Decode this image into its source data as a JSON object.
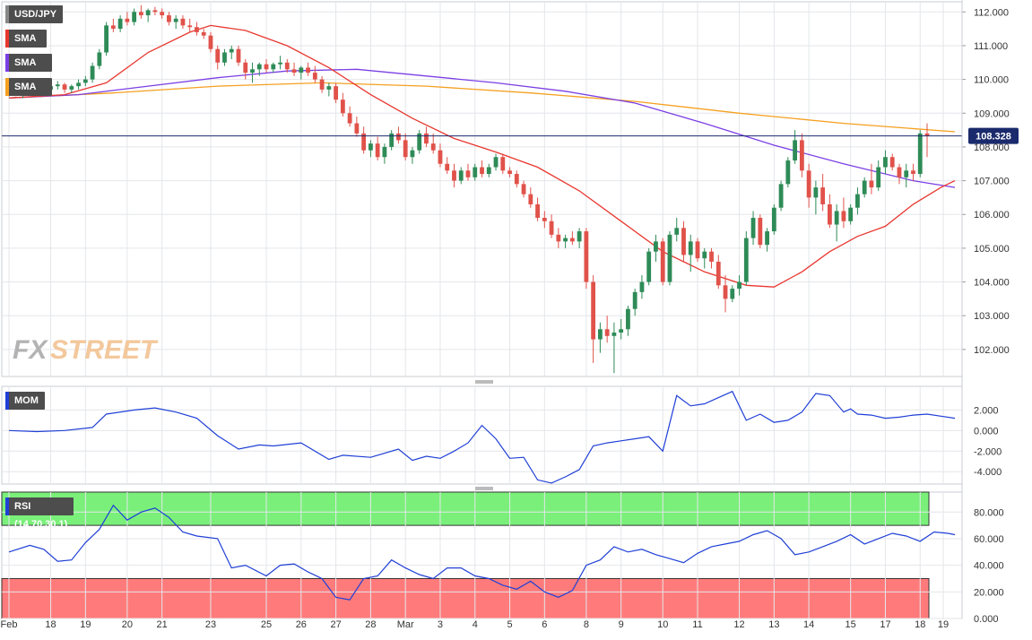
{
  "chart_data": [
    {
      "type": "candlestick",
      "symbol": "USD/JPY",
      "overlays": [
        {
          "name": "SMA (20,0)",
          "color": "#e8372f"
        },
        {
          "name": "SMA (100,0)",
          "color": "#7b3fe4"
        },
        {
          "name": "SMA (200,0)",
          "color": "#f5a020"
        }
      ],
      "x_ticks": [
        "Feb",
        "18",
        "19",
        "20",
        "21",
        "23",
        "25",
        "26",
        "27",
        "28",
        "Mar",
        "3",
        "4",
        "5",
        "6",
        "8",
        "9",
        "10",
        "11",
        "12",
        "13",
        "14",
        "15",
        "17",
        "18",
        "19"
      ],
      "y_ticks": [
        "112.000",
        "111.000",
        "110.000",
        "109.000",
        "108.000",
        "107.000",
        "106.000",
        "105.000",
        "104.000",
        "103.000",
        "102.000"
      ],
      "ylim": [
        101.2,
        112.3
      ],
      "last_price": "108.328",
      "last_price_value": 108.328,
      "up_color": "#2e8b57",
      "down_color": "#e0524a",
      "watermark": "FXSTREET",
      "ohlc": [
        [
          109.55,
          109.65,
          109.5,
          109.6
        ],
        [
          109.6,
          109.7,
          109.5,
          109.55
        ],
        [
          109.55,
          109.65,
          109.45,
          109.6
        ],
        [
          109.6,
          109.75,
          109.55,
          109.7
        ],
        [
          109.7,
          109.8,
          109.6,
          109.65
        ],
        [
          109.65,
          109.75,
          109.6,
          109.7
        ],
        [
          109.7,
          109.85,
          109.65,
          109.8
        ],
        [
          109.8,
          109.95,
          109.7,
          109.85
        ],
        [
          109.85,
          109.9,
          109.6,
          109.7
        ],
        [
          109.7,
          109.85,
          109.6,
          109.8
        ],
        [
          109.8,
          110.0,
          109.7,
          109.9
        ],
        [
          109.9,
          110.1,
          109.8,
          110.0
        ],
        [
          110.0,
          110.5,
          109.9,
          110.4
        ],
        [
          110.4,
          110.9,
          110.3,
          110.8
        ],
        [
          110.8,
          111.7,
          110.7,
          111.6
        ],
        [
          111.6,
          111.8,
          111.4,
          111.5
        ],
        [
          111.5,
          111.9,
          111.4,
          111.8
        ],
        [
          111.8,
          112.0,
          111.6,
          111.7
        ],
        [
          111.7,
          112.1,
          111.6,
          112.0
        ],
        [
          112.0,
          112.2,
          111.8,
          111.9
        ],
        [
          111.9,
          112.1,
          111.7,
          112.05
        ],
        [
          112.05,
          112.15,
          111.9,
          112.0
        ],
        [
          112.0,
          112.1,
          111.8,
          111.9
        ],
        [
          111.9,
          112.0,
          111.6,
          111.7
        ],
        [
          111.7,
          111.9,
          111.5,
          111.8
        ],
        [
          111.8,
          111.9,
          111.5,
          111.6
        ],
        [
          111.6,
          111.8,
          111.4,
          111.55
        ],
        [
          111.55,
          111.7,
          111.3,
          111.4
        ],
        [
          111.4,
          111.5,
          111.2,
          111.3
        ],
        [
          111.3,
          111.4,
          110.8,
          110.9
        ],
        [
          110.9,
          111.0,
          110.3,
          110.5
        ],
        [
          110.5,
          110.9,
          110.4,
          110.8
        ],
        [
          110.8,
          111.0,
          110.6,
          110.9
        ],
        [
          110.9,
          111.0,
          110.4,
          110.5
        ],
        [
          110.5,
          110.6,
          110.0,
          110.2
        ],
        [
          110.2,
          110.5,
          109.9,
          110.3
        ],
        [
          110.3,
          110.5,
          110.1,
          110.45
        ],
        [
          110.45,
          110.6,
          110.2,
          110.3
        ],
        [
          110.3,
          110.5,
          110.2,
          110.45
        ],
        [
          110.45,
          110.7,
          110.3,
          110.5
        ],
        [
          110.5,
          110.6,
          110.2,
          110.3
        ],
        [
          110.3,
          110.5,
          110.1,
          110.2
        ],
        [
          110.2,
          110.4,
          110.0,
          110.35
        ],
        [
          110.35,
          110.5,
          110.1,
          110.2
        ],
        [
          110.2,
          110.4,
          109.9,
          110.0
        ],
        [
          110.0,
          110.1,
          109.6,
          109.7
        ],
        [
          109.7,
          109.9,
          109.5,
          109.8
        ],
        [
          109.8,
          109.9,
          109.3,
          109.4
        ],
        [
          109.4,
          109.6,
          108.9,
          109.0
        ],
        [
          109.0,
          109.2,
          108.6,
          108.7
        ],
        [
          108.7,
          108.9,
          108.3,
          108.4
        ],
        [
          108.4,
          108.6,
          107.8,
          107.9
        ],
        [
          107.9,
          108.2,
          107.7,
          108.1
        ],
        [
          108.1,
          108.3,
          107.6,
          107.7
        ],
        [
          107.7,
          108.1,
          107.5,
          108.0
        ],
        [
          108.0,
          108.5,
          107.9,
          108.4
        ],
        [
          108.4,
          108.6,
          108.1,
          108.2
        ],
        [
          108.2,
          108.4,
          107.6,
          107.7
        ],
        [
          107.7,
          108.0,
          107.5,
          107.9
        ],
        [
          107.9,
          108.5,
          107.8,
          108.4
        ],
        [
          108.4,
          108.6,
          108.0,
          108.1
        ],
        [
          108.1,
          108.4,
          107.8,
          107.9
        ],
        [
          107.9,
          108.1,
          107.4,
          107.5
        ],
        [
          107.5,
          107.7,
          107.2,
          107.3
        ],
        [
          107.3,
          107.5,
          106.8,
          107.0
        ],
        [
          107.0,
          107.4,
          106.9,
          107.3
        ],
        [
          107.3,
          107.5,
          107.0,
          107.1
        ],
        [
          107.1,
          107.5,
          107.0,
          107.4
        ],
        [
          107.4,
          107.6,
          107.1,
          107.2
        ],
        [
          107.2,
          107.5,
          107.1,
          107.4
        ],
        [
          107.4,
          107.8,
          107.3,
          107.7
        ],
        [
          107.7,
          107.8,
          107.2,
          107.3
        ],
        [
          107.3,
          107.4,
          107.1,
          107.2
        ],
        [
          107.2,
          107.3,
          106.8,
          106.9
        ],
        [
          106.9,
          107.0,
          106.5,
          106.6
        ],
        [
          106.6,
          106.8,
          106.2,
          106.3
        ],
        [
          106.3,
          106.5,
          105.8,
          105.9
        ],
        [
          105.9,
          106.1,
          105.6,
          105.8
        ],
        [
          105.8,
          106.0,
          105.3,
          105.4
        ],
        [
          105.4,
          105.6,
          105.0,
          105.2
        ],
        [
          105.2,
          105.4,
          105.0,
          105.3
        ],
        [
          105.3,
          105.5,
          105.1,
          105.2
        ],
        [
          105.2,
          105.6,
          105.0,
          105.5
        ],
        [
          105.5,
          105.6,
          103.8,
          104.0
        ],
        [
          104.0,
          104.2,
          101.6,
          102.3
        ],
        [
          102.3,
          102.8,
          101.9,
          102.6
        ],
        [
          102.6,
          103.0,
          102.2,
          102.4
        ],
        [
          102.4,
          102.8,
          101.3,
          102.5
        ],
        [
          102.5,
          102.9,
          102.3,
          102.6
        ],
        [
          102.6,
          103.3,
          102.4,
          103.2
        ],
        [
          103.2,
          103.8,
          103.0,
          103.7
        ],
        [
          103.7,
          104.2,
          103.5,
          104.0
        ],
        [
          104.0,
          105.0,
          103.9,
          104.9
        ],
        [
          104.9,
          105.4,
          104.6,
          105.2
        ],
        [
          105.2,
          105.3,
          103.9,
          104.0
        ],
        [
          104.0,
          105.5,
          103.9,
          105.4
        ],
        [
          105.4,
          105.9,
          105.2,
          105.6
        ],
        [
          105.6,
          105.8,
          104.6,
          104.8
        ],
        [
          104.8,
          105.4,
          104.3,
          105.2
        ],
        [
          105.2,
          105.3,
          104.6,
          104.7
        ],
        [
          104.7,
          105.0,
          104.4,
          104.9
        ],
        [
          104.9,
          105.0,
          104.4,
          104.6
        ],
        [
          104.6,
          104.8,
          103.8,
          103.9
        ],
        [
          103.9,
          104.2,
          103.1,
          103.5
        ],
        [
          103.5,
          103.9,
          103.4,
          103.8
        ],
        [
          103.8,
          104.2,
          103.6,
          104.0
        ],
        [
          104.0,
          105.5,
          103.9,
          105.3
        ],
        [
          105.3,
          106.1,
          105.1,
          105.9
        ],
        [
          105.9,
          106.0,
          105.0,
          105.1
        ],
        [
          105.1,
          105.6,
          104.9,
          105.5
        ],
        [
          105.5,
          106.3,
          105.4,
          106.2
        ],
        [
          106.2,
          107.0,
          106.1,
          106.9
        ],
        [
          106.9,
          107.7,
          106.8,
          107.6
        ],
        [
          107.6,
          108.5,
          107.5,
          108.2
        ],
        [
          108.2,
          108.4,
          107.1,
          107.3
        ],
        [
          107.3,
          107.5,
          106.2,
          106.5
        ],
        [
          106.5,
          107.0,
          106.0,
          106.8
        ],
        [
          106.8,
          107.2,
          106.1,
          106.3
        ],
        [
          106.3,
          106.6,
          105.6,
          105.7
        ],
        [
          105.7,
          106.3,
          105.2,
          106.1
        ],
        [
          106.1,
          106.5,
          105.6,
          105.8
        ],
        [
          105.8,
          106.3,
          105.7,
          106.2
        ],
        [
          106.2,
          106.8,
          106.0,
          106.6
        ],
        [
          106.6,
          107.1,
          106.5,
          107.0
        ],
        [
          107.0,
          107.5,
          106.6,
          106.8
        ],
        [
          106.8,
          107.6,
          106.7,
          107.4
        ],
        [
          107.4,
          107.9,
          107.2,
          107.7
        ],
        [
          107.7,
          107.8,
          107.3,
          107.4
        ],
        [
          107.4,
          107.5,
          106.9,
          107.1
        ],
        [
          107.1,
          107.5,
          106.8,
          107.3
        ],
        [
          107.3,
          107.5,
          107.0,
          107.2
        ],
        [
          107.2,
          108.5,
          107.1,
          108.4
        ],
        [
          108.4,
          108.7,
          107.7,
          108.33
        ]
      ],
      "sma20": [
        [
          0,
          109.45
        ],
        [
          8,
          109.55
        ],
        [
          14,
          109.9
        ],
        [
          20,
          110.8
        ],
        [
          26,
          111.4
        ],
        [
          29,
          111.6
        ],
        [
          34,
          111.45
        ],
        [
          40,
          111.0
        ],
        [
          46,
          110.35
        ],
        [
          52,
          109.55
        ],
        [
          58,
          108.85
        ],
        [
          64,
          108.25
        ],
        [
          70,
          107.85
        ],
        [
          76,
          107.4
        ],
        [
          82,
          106.7
        ],
        [
          88,
          105.8
        ],
        [
          94,
          104.9
        ],
        [
          100,
          104.3
        ],
        [
          106,
          103.9
        ],
        [
          110,
          103.85
        ],
        [
          114,
          104.3
        ],
        [
          118,
          104.9
        ],
        [
          122,
          105.35
        ],
        [
          126,
          105.65
        ],
        [
          130,
          106.3
        ],
        [
          134,
          106.8
        ],
        [
          136,
          107.0
        ]
      ],
      "sma100": [
        [
          0,
          109.45
        ],
        [
          10,
          109.55
        ],
        [
          20,
          109.8
        ],
        [
          30,
          110.05
        ],
        [
          40,
          110.25
        ],
        [
          50,
          110.3
        ],
        [
          60,
          110.1
        ],
        [
          70,
          109.9
        ],
        [
          80,
          109.65
        ],
        [
          90,
          109.3
        ],
        [
          100,
          108.7
        ],
        [
          110,
          108.05
        ],
        [
          120,
          107.5
        ],
        [
          130,
          107.0
        ],
        [
          136,
          106.8
        ]
      ],
      "sma200": [
        [
          0,
          109.45
        ],
        [
          15,
          109.6
        ],
        [
          30,
          109.8
        ],
        [
          45,
          109.9
        ],
        [
          60,
          109.8
        ],
        [
          75,
          109.6
        ],
        [
          90,
          109.35
        ],
        [
          105,
          109.0
        ],
        [
          120,
          108.7
        ],
        [
          136,
          108.45
        ]
      ]
    },
    {
      "type": "line",
      "name": "MOM (20)",
      "color": "#1f3fd6",
      "y_ticks": [
        "2.000",
        "0.000",
        "-2.000",
        "-4.000"
      ],
      "ylim": [
        -5.2,
        4.3
      ],
      "x": [
        0,
        4,
        8,
        12,
        14,
        18,
        21,
        24,
        27,
        30,
        33,
        36,
        38,
        42,
        46,
        48,
        52,
        56,
        58,
        60,
        62,
        64,
        66,
        68,
        70,
        72,
        74,
        76,
        78,
        80,
        82,
        84,
        86,
        88,
        90,
        92,
        94,
        96,
        98,
        100,
        102,
        104,
        106,
        108,
        110,
        112,
        114,
        116,
        118,
        120,
        121,
        122,
        124,
        126,
        128,
        130,
        132,
        134,
        136
      ],
      "values": [
        0,
        -0.1,
        0,
        0.3,
        1.6,
        2.0,
        2.2,
        1.8,
        1.2,
        -0.5,
        -1.8,
        -1.4,
        -1.5,
        -1.2,
        -2.8,
        -2.4,
        -2.6,
        -1.8,
        -2.9,
        -2.5,
        -2.7,
        -2.0,
        -1.2,
        0.5,
        -0.8,
        -2.7,
        -2.6,
        -4.8,
        -5.1,
        -4.5,
        -3.8,
        -1.5,
        -1.2,
        -1.0,
        -0.8,
        -0.6,
        -2.0,
        3.4,
        2.4,
        2.6,
        3.2,
        3.8,
        1.0,
        1.6,
        0.8,
        1.0,
        1.8,
        3.6,
        3.4,
        1.8,
        2.1,
        1.6,
        1.5,
        1.2,
        1.3,
        1.5,
        1.6,
        1.4,
        1.2
      ],
      "values_note": ""
    },
    {
      "type": "line",
      "name": "RSI (14,70,30,1)",
      "color": "#1f3fd6",
      "y_ticks": [
        "80.000",
        "60.000",
        "40.000",
        "20.000",
        "0.000"
      ],
      "ylim": [
        0,
        95
      ],
      "bands": [
        {
          "from": 70,
          "to": 95,
          "color": "#7af07a"
        },
        {
          "from": 0,
          "to": 30,
          "color": "#ff7b7b"
        }
      ],
      "x": [
        0,
        3,
        5,
        7,
        9,
        11,
        13,
        15,
        17,
        19,
        21,
        23,
        25,
        27,
        30,
        32,
        34,
        37,
        39,
        41,
        43,
        45,
        47,
        49,
        51,
        53,
        55,
        57,
        59,
        61,
        63,
        65,
        67,
        69,
        71,
        73,
        75,
        77,
        79,
        81,
        83,
        85,
        87,
        89,
        91,
        93,
        95,
        97,
        99,
        101,
        103,
        105,
        107,
        109,
        111,
        113,
        115,
        117,
        119,
        121,
        123,
        125,
        127,
        129,
        131,
        133,
        135,
        136
      ],
      "values": [
        50,
        55,
        52,
        43,
        44,
        57,
        67,
        85,
        74,
        80,
        83,
        76,
        65,
        62,
        60,
        38,
        40,
        32,
        40,
        41,
        35,
        30,
        16,
        14,
        30,
        32,
        44,
        38,
        33,
        30,
        38,
        38,
        32,
        30,
        25,
        22,
        28,
        20,
        16,
        21,
        40,
        44,
        54,
        50,
        52,
        48,
        45,
        42,
        49,
        54,
        56,
        58,
        63,
        66,
        60,
        48,
        50,
        54,
        58,
        63,
        56,
        60,
        64,
        62,
        58,
        65,
        64,
        63
      ]
    }
  ]
}
